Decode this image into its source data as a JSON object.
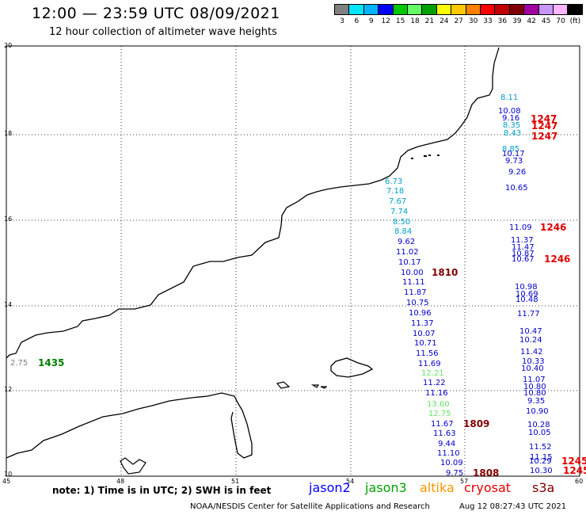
{
  "header": {
    "title": "12:00 — 23:59 UTC 08/09/2021",
    "subtitle": "12 hour collection of altimeter wave heights"
  },
  "legend": {
    "colors": [
      "#808080",
      "#00e6ff",
      "#00b4ff",
      "#0000ff",
      "#00c800",
      "#64ff64",
      "#00a000",
      "#ffff00",
      "#ffc800",
      "#ff8000",
      "#ff0000",
      "#c00000",
      "#800000",
      "#a000a0",
      "#c896ff",
      "#ffb4ff",
      "#000000"
    ],
    "labels": [
      "3",
      "6",
      "9",
      "12",
      "15",
      "18",
      "21",
      "24",
      "27",
      "30",
      "33",
      "36",
      "39",
      "42",
      "45",
      "70",
      "(ft)"
    ]
  },
  "axes": {
    "y_ticks": [
      "20",
      "18",
      "16",
      "14",
      "12",
      "10"
    ],
    "x_ticks": [
      "45",
      "48",
      "51",
      "54",
      "57",
      "60"
    ]
  },
  "observations": [
    {
      "text": "8.11",
      "color": "#00a0c8"
    },
    {
      "text": "10.08",
      "color": "#0000c8"
    },
    {
      "text": "9.16",
      "color": "#0000c8"
    },
    {
      "text": "8.35",
      "color": "#00a0c8"
    },
    {
      "text": "8.43",
      "color": "#00a0c8"
    },
    {
      "text": "8.85",
      "color": "#00a0c8"
    },
    {
      "text": "10.17",
      "color": "#0000c8"
    },
    {
      "text": "9.73",
      "color": "#0000c8"
    },
    {
      "text": "9.26",
      "color": "#0000c8"
    },
    {
      "text": "10.65",
      "color": "#0000c8"
    },
    {
      "text": "6.73",
      "color": "#00a0c8"
    },
    {
      "text": "7.18",
      "color": "#00a0c8"
    },
    {
      "text": "7.67",
      "color": "#00a0c8"
    },
    {
      "text": "7.74",
      "color": "#00a0c8"
    },
    {
      "text": "8.50",
      "color": "#00a0c8"
    },
    {
      "text": "8.84",
      "color": "#00a0c8"
    },
    {
      "text": "9.62",
      "color": "#0000c8"
    },
    {
      "text": "11.02",
      "color": "#0000c8"
    },
    {
      "text": "10.17",
      "color": "#0000c8"
    },
    {
      "text": "10.00",
      "color": "#0000c8"
    },
    {
      "text": "11.11",
      "color": "#0000c8"
    },
    {
      "text": "11.87",
      "color": "#0000c8"
    },
    {
      "text": "10.75",
      "color": "#0000c8"
    },
    {
      "text": "10.96",
      "color": "#0000c8"
    },
    {
      "text": "11.37",
      "color": "#0000c8"
    },
    {
      "text": "10.07",
      "color": "#0000c8"
    },
    {
      "text": "10.71",
      "color": "#0000c8"
    },
    {
      "text": "11.56",
      "color": "#0000c8"
    },
    {
      "text": "11.69",
      "color": "#0000c8"
    },
    {
      "text": "12.21",
      "color": "#64e664"
    },
    {
      "text": "11.22",
      "color": "#0000c8"
    },
    {
      "text": "11.16",
      "color": "#0000c8"
    },
    {
      "text": "13.60",
      "color": "#64e664"
    },
    {
      "text": "12.75",
      "color": "#64e664"
    },
    {
      "text": "11.67",
      "color": "#0000c8"
    },
    {
      "text": "11.63",
      "color": "#0000c8"
    },
    {
      "text": "9.44",
      "color": "#0000c8"
    },
    {
      "text": "11.10",
      "color": "#0000c8"
    },
    {
      "text": "10.09",
      "color": "#0000c8"
    },
    {
      "text": "9.75",
      "color": "#0000c8"
    },
    {
      "text": "11.09",
      "color": "#0000c8"
    },
    {
      "text": "11.37",
      "color": "#0000c8"
    },
    {
      "text": "11.47",
      "color": "#0000c8"
    },
    {
      "text": "10.87",
      "color": "#0000c8"
    },
    {
      "text": "10.67",
      "color": "#0000c8"
    },
    {
      "text": "10.98",
      "color": "#0000c8"
    },
    {
      "text": "10.69",
      "color": "#0000c8"
    },
    {
      "text": "10.48",
      "color": "#0000c8"
    },
    {
      "text": "11.77",
      "color": "#0000c8"
    },
    {
      "text": "10.47",
      "color": "#0000c8"
    },
    {
      "text": "10.24",
      "color": "#0000c8"
    },
    {
      "text": "11.42",
      "color": "#0000c8"
    },
    {
      "text": "10.33",
      "color": "#0000c8"
    },
    {
      "text": "10.40",
      "color": "#0000c8"
    },
    {
      "text": "11.07",
      "color": "#0000c8"
    },
    {
      "text": "10.80",
      "color": "#0000c8"
    },
    {
      "text": "10.80",
      "color": "#0000c8"
    },
    {
      "text": "9.35",
      "color": "#0000c8"
    },
    {
      "text": "10.90",
      "color": "#0000c8"
    },
    {
      "text": "10.28",
      "color": "#0000c8"
    },
    {
      "text": "10.05",
      "color": "#0000c8"
    },
    {
      "text": "11.52",
      "color": "#0000c8"
    },
    {
      "text": "11.15",
      "color": "#0000c8"
    },
    {
      "text": "10.29",
      "color": "#0000c8"
    },
    {
      "text": "10.30",
      "color": "#0000c8"
    },
    {
      "text": "2.75",
      "color": "#808080"
    }
  ],
  "time_labels": [
    {
      "text": "1247",
      "color": "#e00000"
    },
    {
      "text": "1247",
      "color": "#e00000"
    },
    {
      "text": "1247",
      "color": "#e00000"
    },
    {
      "text": "1246",
      "color": "#e00000"
    },
    {
      "text": "1246",
      "color": "#e00000"
    },
    {
      "text": "1245",
      "color": "#e00000"
    },
    {
      "text": "1245",
      "color": "#e00000"
    },
    {
      "text": "1810",
      "color": "#800000"
    },
    {
      "text": "1809",
      "color": "#800000"
    },
    {
      "text": "1808",
      "color": "#800000"
    },
    {
      "text": "1435",
      "color": "#008000"
    }
  ],
  "note": "note:  1) Time is in UTC;  2) SWH is in feet",
  "satellites": [
    {
      "name": "jason2",
      "color": "#0000ff"
    },
    {
      "name": "jason3",
      "color": "#00a000"
    },
    {
      "name": "altika",
      "color": "#ff9600"
    },
    {
      "name": "cryosat",
      "color": "#e00000"
    },
    {
      "name": "s3a",
      "color": "#800000"
    }
  ],
  "footer": {
    "credit": "NOAA/NESDIS Center for Satellite Applications and Research",
    "timestamp": "Aug 12 08:27:43 UTC 2021"
  }
}
